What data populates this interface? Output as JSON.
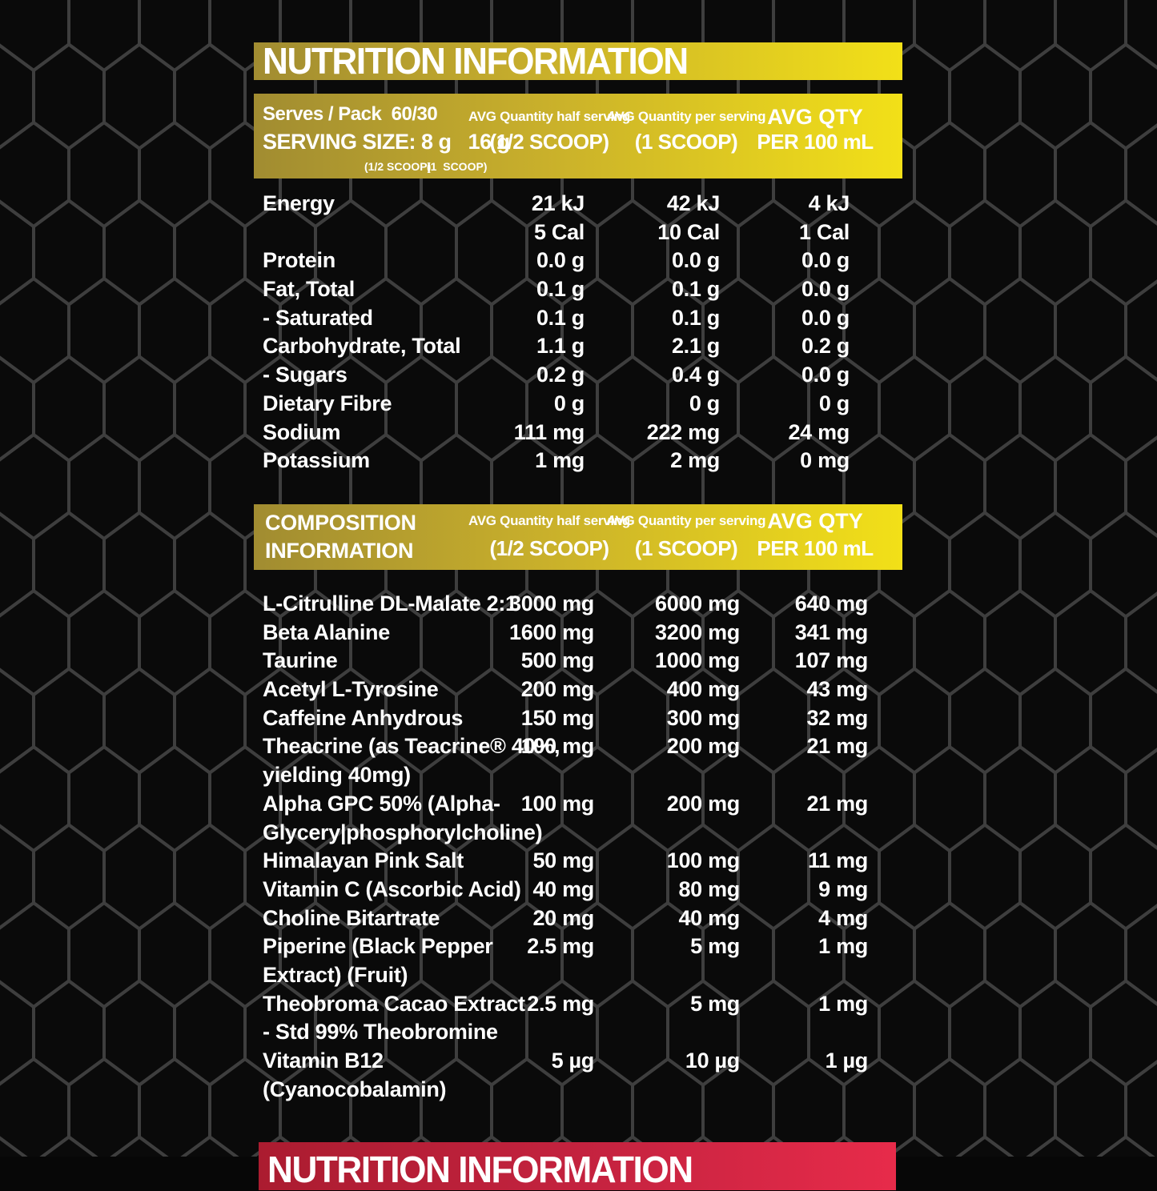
{
  "colors": {
    "background": "#070707",
    "hex_line": "#3e3e3e",
    "yellow_gradient_left": "#a18c31",
    "yellow_gradient_right": "#f2e018",
    "red_gradient_left": "#ab1c30",
    "red_gradient_right": "#e72b4a",
    "text": "#ffffff"
  },
  "top_banner": {
    "title": "NUTRITION INFORMATION"
  },
  "serving_header": {
    "serves_line": "Serves / Pack  60/30",
    "serving_size_line": "SERVING SIZE: 8 g   16 g",
    "serving_size_sub_half": "(1/2 SCOOP)",
    "serving_size_sub_full": "(1  SCOOP)",
    "col_half_top": "AVG Quantity half serving",
    "col_half_bottom": "(1/2 SCOOP)",
    "col_per_top": "AVG Quantity per serving",
    "col_per_bottom": "(1 SCOOP)",
    "col_100_top": "AVG QTY",
    "col_100_bottom": "PER 100 mL"
  },
  "nutrition": {
    "rows": [
      {
        "label": "Energy",
        "half": "21 kJ",
        "per": "42 kJ",
        "per100": "4 kJ"
      },
      {
        "label": "",
        "half": "5 Cal",
        "per": "10 Cal",
        "per100": "1 Cal"
      },
      {
        "label": "Protein",
        "half": "0.0 g",
        "per": "0.0 g",
        "per100": "0.0 g"
      },
      {
        "label": "Fat, Total",
        "half": "0.1 g",
        "per": "0.1 g",
        "per100": "0.0 g"
      },
      {
        "label": "- Saturated",
        "half": "0.1 g",
        "per": "0.1 g",
        "per100": "0.0 g"
      },
      {
        "label": "Carbohydrate, Total",
        "half": "1.1 g",
        "per": "2.1 g",
        "per100": "0.2 g"
      },
      {
        "label": "- Sugars",
        "half": "0.2 g",
        "per": "0.4 g",
        "per100": "0.0 g"
      },
      {
        "label": "Dietary Fibre",
        "half": "0 g",
        "per": "0 g",
        "per100": "0 g"
      },
      {
        "label": "Sodium",
        "half": "111 mg",
        "per": "222 mg",
        "per100": "24 mg"
      },
      {
        "label": "Potassium",
        "half": "1 mg",
        "per": "2 mg",
        "per100": "0 mg"
      }
    ]
  },
  "composition_header": {
    "title_line1": "COMPOSITION",
    "title_line2": "INFORMATION",
    "col_half_top": "AVG Quantity half serving",
    "col_half_bottom": "(1/2 SCOOP)",
    "col_per_top": "AVG Quantity per serving",
    "col_per_bottom": "(1 SCOOP)",
    "col_100_top": "AVG QTY",
    "col_100_bottom": "PER 100 mL"
  },
  "composition": {
    "rows": [
      {
        "label": "L-Citrulline DL-Malate 2:1",
        "half": "3000 mg",
        "per": "6000 mg",
        "per100": "640 mg"
      },
      {
        "label": "Beta Alanine",
        "half": "1600 mg",
        "per": "3200 mg",
        "per100": "341 mg"
      },
      {
        "label": "Taurine",
        "half": "500 mg",
        "per": "1000 mg",
        "per100": "107 mg"
      },
      {
        "label": "Acetyl L-Tyrosine",
        "half": "200 mg",
        "per": "400 mg",
        "per100": "43 mg"
      },
      {
        "label": "Caffeine Anhydrous",
        "half": "150 mg",
        "per": "300 mg",
        "per100": "32 mg"
      },
      {
        "label": "Theacrine (as Teacrine® 40%,",
        "label2": "yielding 40mg)",
        "half": "100 mg",
        "per": "200 mg",
        "per100": "21 mg"
      },
      {
        "label": "Alpha GPC 50% (Alpha-",
        "label2": "Glycery|phosphorylcholine)",
        "half": "100 mg",
        "per": "200 mg",
        "per100": "21 mg"
      },
      {
        "label": "Himalayan Pink Salt",
        "half": "50 mg",
        "per": "100 mg",
        "per100": "11 mg"
      },
      {
        "label": "Vitamin C (Ascorbic Acid)",
        "half": "40 mg",
        "per": "80 mg",
        "per100": "9 mg"
      },
      {
        "label": "Choline Bitartrate",
        "half": "20 mg",
        "per": "40 mg",
        "per100": "4 mg"
      },
      {
        "label": "Piperine (Black Pepper",
        "label2": "Extract) (Fruit)",
        "half": "2.5 mg",
        "per": "5 mg",
        "per100": "1 mg"
      },
      {
        "label": "Theobroma Cacao Extract",
        "label2": "- Std 99% Theobromine",
        "half": "2.5 mg",
        "per": "5 mg",
        "per100": "1 mg"
      },
      {
        "label": "Vitamin B12",
        "label2": "(Cyanocobalamin)",
        "half": "5 µg",
        "per": "10 µg",
        "per100": "1 µg"
      }
    ]
  },
  "bottom_banner": {
    "title": "NUTRITION INFORMATION"
  }
}
